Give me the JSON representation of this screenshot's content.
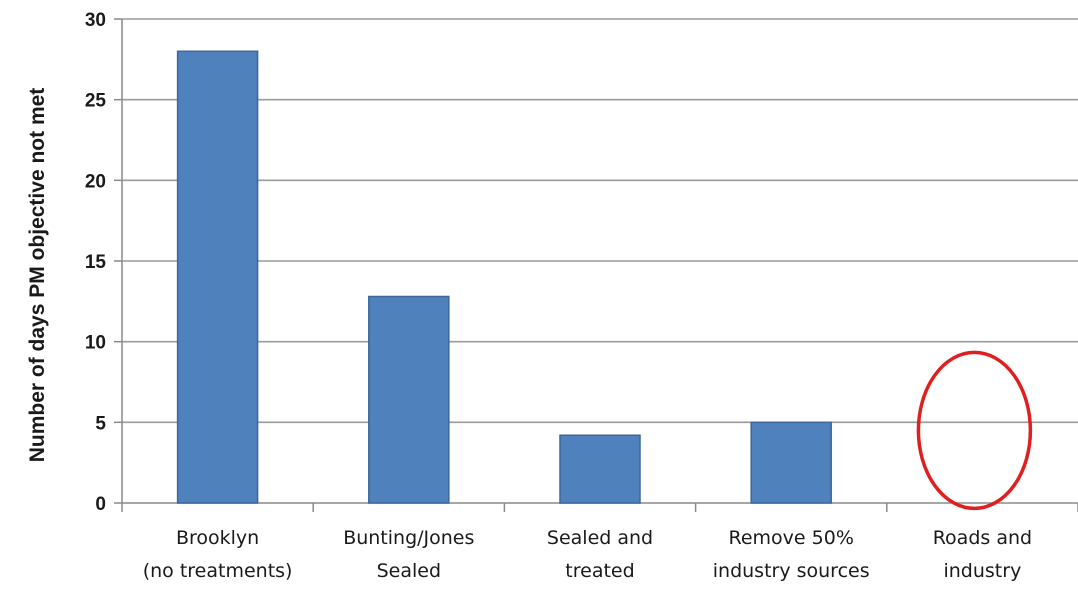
{
  "chart_data": {
    "type": "bar",
    "title": "",
    "xlabel": "",
    "ylabel": "Number of days PM objective not met",
    "ylim": [
      0,
      30
    ],
    "yticks": [
      0,
      5,
      10,
      15,
      20,
      25,
      30
    ],
    "grid": true,
    "categories": [
      [
        "Brooklyn",
        "(no treatments)"
      ],
      [
        "Bunting/Jones",
        "Sealed"
      ],
      [
        "Sealed and",
        "treated"
      ],
      [
        "Remove 50%",
        "industry sources"
      ],
      [
        "Roads and",
        "industry"
      ]
    ],
    "values": [
      28,
      12.8,
      4.2,
      5,
      null
    ],
    "bar_color": "#4f81bd",
    "bar_edge_color": "#3c6798",
    "grid_color": "#9a9a9a",
    "annotation": {
      "shape": "ellipse",
      "color": "#e02020",
      "category_index": 4,
      "y_center": 4.5
    }
  }
}
